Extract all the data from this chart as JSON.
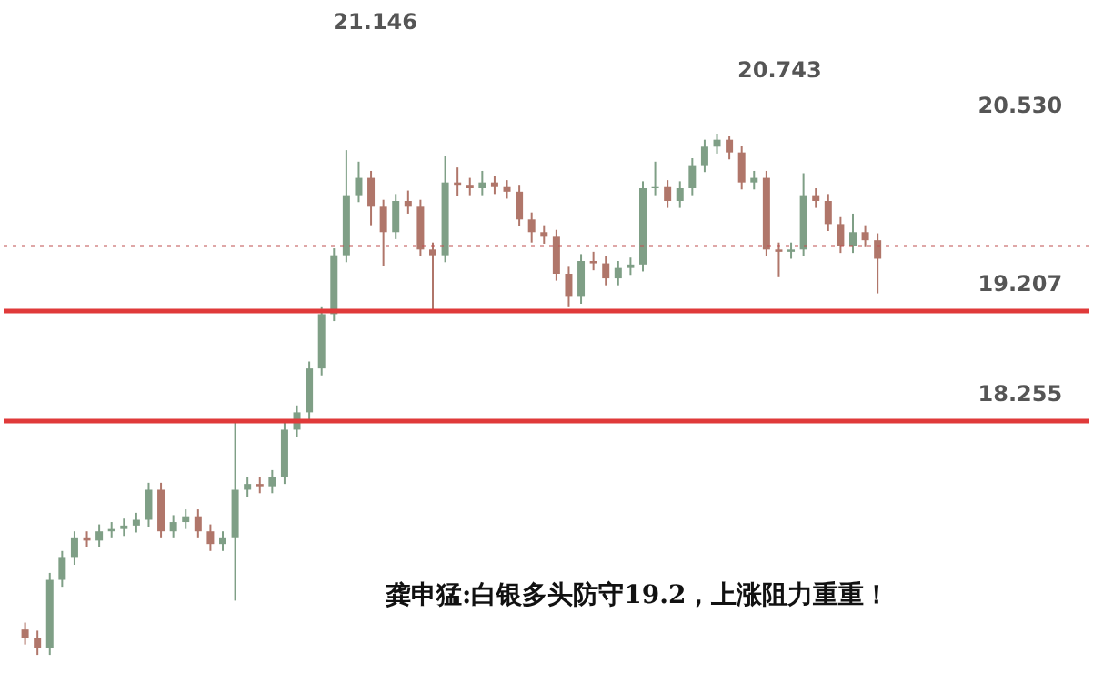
{
  "chart_data": {
    "type": "candlestick",
    "title": "龚申猛:白银多头防守19.2，上涨阻力重重！",
    "categories": [
      null,
      null,
      null,
      null,
      null,
      null,
      null,
      null,
      null,
      null,
      null,
      null,
      null,
      null,
      null,
      null,
      null,
      null,
      null,
      null,
      null,
      null,
      null,
      null,
      null,
      null,
      null,
      null,
      null,
      null,
      null,
      null,
      null,
      null,
      null,
      null,
      null,
      null,
      null,
      null,
      null,
      null,
      null,
      null,
      null,
      null,
      null,
      null,
      null,
      null,
      null,
      null,
      null,
      null,
      null,
      null,
      null,
      null,
      null,
      null,
      null,
      null,
      null,
      null,
      null,
      null,
      null,
      null,
      null,
      null
    ],
    "ohlc": [
      [
        16.45,
        16.51,
        16.32,
        16.38
      ],
      [
        16.38,
        16.44,
        16.23,
        16.29
      ],
      [
        16.29,
        16.94,
        16.23,
        16.88
      ],
      [
        16.88,
        17.13,
        16.82,
        17.07
      ],
      [
        17.07,
        17.3,
        17.01,
        17.24
      ],
      [
        17.24,
        17.3,
        17.16,
        17.22
      ],
      [
        17.22,
        17.36,
        17.16,
        17.3
      ],
      [
        17.3,
        17.38,
        17.24,
        17.32
      ],
      [
        17.32,
        17.41,
        17.26,
        17.35
      ],
      [
        17.35,
        17.46,
        17.29,
        17.4
      ],
      [
        17.4,
        17.72,
        17.34,
        17.66
      ],
      [
        17.66,
        17.72,
        17.24,
        17.3
      ],
      [
        17.3,
        17.44,
        17.24,
        17.38
      ],
      [
        17.38,
        17.49,
        17.32,
        17.43
      ],
      [
        17.43,
        17.49,
        17.24,
        17.3
      ],
      [
        17.3,
        17.36,
        17.13,
        17.19
      ],
      [
        17.19,
        17.3,
        17.13,
        17.24
      ],
      [
        17.24,
        18.25,
        16.7,
        17.66
      ],
      [
        17.66,
        17.77,
        17.6,
        17.71
      ],
      [
        17.71,
        17.77,
        17.63,
        17.69
      ],
      [
        17.69,
        17.83,
        17.63,
        17.77
      ],
      [
        17.77,
        18.24,
        17.71,
        18.18
      ],
      [
        18.18,
        18.39,
        18.12,
        18.33
      ],
      [
        18.33,
        18.77,
        18.27,
        18.71
      ],
      [
        18.71,
        19.24,
        18.65,
        19.18
      ],
      [
        19.18,
        19.75,
        19.12,
        19.69
      ],
      [
        19.69,
        20.6,
        19.63,
        20.21
      ],
      [
        20.21,
        20.5,
        20.15,
        20.36
      ],
      [
        20.36,
        20.42,
        19.95,
        20.11
      ],
      [
        20.11,
        20.17,
        19.6,
        19.89
      ],
      [
        19.89,
        20.22,
        19.83,
        20.16
      ],
      [
        20.16,
        20.25,
        20.05,
        20.11
      ],
      [
        20.11,
        20.17,
        19.68,
        19.74
      ],
      [
        19.74,
        19.8,
        19.2,
        19.69
      ],
      [
        19.69,
        20.55,
        19.63,
        20.32
      ],
      [
        20.32,
        20.45,
        20.2,
        20.3
      ],
      [
        20.3,
        20.36,
        20.21,
        20.27
      ],
      [
        20.27,
        20.42,
        20.21,
        20.32
      ],
      [
        20.32,
        20.38,
        20.22,
        20.28
      ],
      [
        20.28,
        20.34,
        20.18,
        20.24
      ],
      [
        20.24,
        20.3,
        19.94,
        20.0
      ],
      [
        20.0,
        20.06,
        19.8,
        19.89
      ],
      [
        19.89,
        19.95,
        19.79,
        19.85
      ],
      [
        19.85,
        19.91,
        19.47,
        19.53
      ],
      [
        19.53,
        19.59,
        19.24,
        19.33
      ],
      [
        19.33,
        19.7,
        19.27,
        19.64
      ],
      [
        19.64,
        19.72,
        19.56,
        19.62
      ],
      [
        19.62,
        19.68,
        19.43,
        19.49
      ],
      [
        19.49,
        19.64,
        19.43,
        19.58
      ],
      [
        19.58,
        19.67,
        19.52,
        19.61
      ],
      [
        19.61,
        20.33,
        19.55,
        20.27
      ],
      [
        20.27,
        20.5,
        20.21,
        20.28
      ],
      [
        20.28,
        20.34,
        20.1,
        20.16
      ],
      [
        20.16,
        20.33,
        20.1,
        20.27
      ],
      [
        20.27,
        20.53,
        20.21,
        20.47
      ],
      [
        20.47,
        20.69,
        20.41,
        20.63
      ],
      [
        20.63,
        20.743,
        20.57,
        20.69
      ],
      [
        20.69,
        20.72,
        20.52,
        20.58
      ],
      [
        20.58,
        20.64,
        20.26,
        20.32
      ],
      [
        20.32,
        20.42,
        20.26,
        20.36
      ],
      [
        20.36,
        20.42,
        19.68,
        19.74
      ],
      [
        19.74,
        19.8,
        19.5,
        19.72
      ],
      [
        19.72,
        19.8,
        19.66,
        19.74
      ],
      [
        19.74,
        20.4,
        19.68,
        20.21
      ],
      [
        20.21,
        20.27,
        20.1,
        20.16
      ],
      [
        20.16,
        20.22,
        19.9,
        19.96
      ],
      [
        19.96,
        20.02,
        19.71,
        19.77
      ],
      [
        19.77,
        20.05,
        19.71,
        19.89
      ],
      [
        19.89,
        19.95,
        19.76,
        19.82
      ],
      [
        19.82,
        19.88,
        19.36,
        19.66
      ]
    ],
    "ylim": [
      15.9,
      21.9
    ],
    "ref_lines": [
      {
        "axis": "y",
        "value": 19.207,
        "label": "19.207",
        "color": "#e03a3a"
      },
      {
        "axis": "y",
        "value": 18.255,
        "label": "18.255",
        "color": "#e03a3a"
      },
      {
        "axis": "y",
        "value": 19.77,
        "label": null,
        "color": "#c05050",
        "line_style": "dotted"
      }
    ],
    "annotations": [
      "21.146",
      "20.743",
      "20.530"
    ]
  }
}
